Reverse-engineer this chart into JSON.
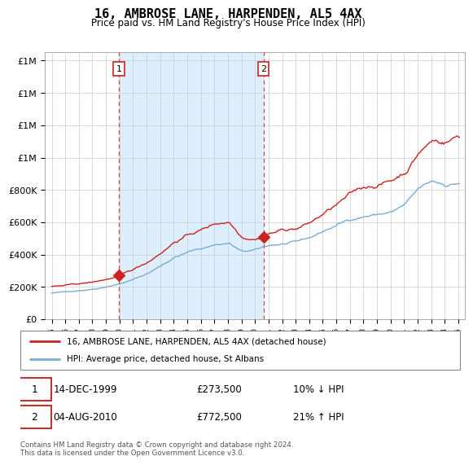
{
  "title": "16, AMBROSE LANE, HARPENDEN, AL5 4AX",
  "subtitle": "Price paid vs. HM Land Registry's House Price Index (HPI)",
  "legend_line1": "16, AMBROSE LANE, HARPENDEN, AL5 4AX (detached house)",
  "legend_line2": "HPI: Average price, detached house, St Albans",
  "annotation1_label": "1",
  "annotation1_date": "14-DEC-1999",
  "annotation1_price": "£273,500",
  "annotation1_hpi": "10% ↓ HPI",
  "annotation1_year": 1999.96,
  "annotation1_value": 273500,
  "annotation2_label": "2",
  "annotation2_date": "04-AUG-2010",
  "annotation2_price": "£772,500",
  "annotation2_hpi": "21% ↑ HPI",
  "annotation2_year": 2010.62,
  "annotation2_value": 772500,
  "footer": "Contains HM Land Registry data © Crown copyright and database right 2024.\nThis data is licensed under the Open Government Licence v3.0.",
  "hpi_color": "#7aadd4",
  "price_color": "#cc2222",
  "dashed_line_color": "#dd4444",
  "shade_color": "#ddeeff",
  "background_color": "#FFFFFF",
  "grid_color": "#cccccc",
  "ylim": [
    0,
    1650000
  ],
  "yticks": [
    0,
    200000,
    400000,
    600000,
    800000,
    1000000,
    1200000,
    1400000,
    1600000
  ],
  "xlim_start": 1994.5,
  "xlim_end": 2025.5
}
